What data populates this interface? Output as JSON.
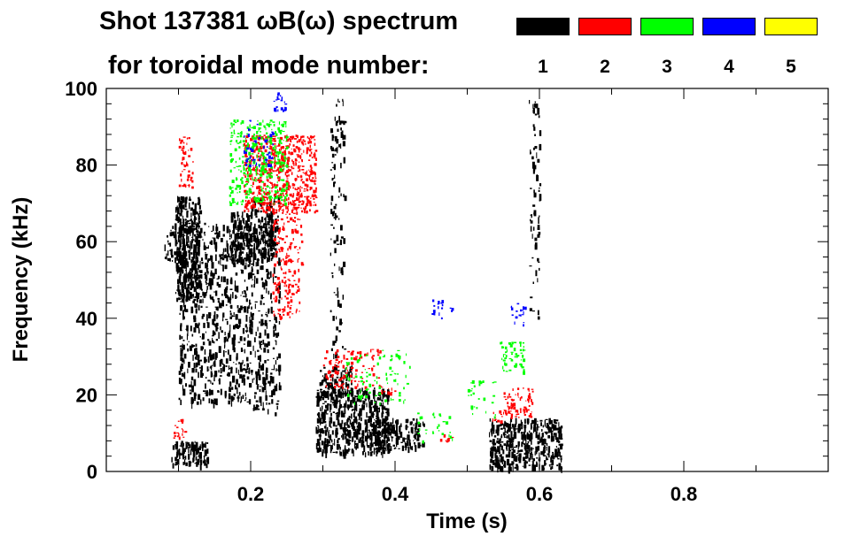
{
  "chart_data": {
    "type": "heatmap",
    "title": "Shot 137381 ωB(ω) spectrum",
    "subtitle": "for toroidal mode number:",
    "xlabel": "Time (s)",
    "ylabel": "Frequency (kHz)",
    "xlim": [
      0.0,
      1.0
    ],
    "ylim": [
      0,
      100
    ],
    "xticks": [
      0.2,
      0.4,
      0.6,
      0.8
    ],
    "xtick_labels": [
      "0.2",
      "0.4",
      "0.6",
      "0.8"
    ],
    "yticks": [
      0,
      20,
      40,
      60,
      80,
      100
    ],
    "ytick_labels": [
      "0",
      "20",
      "40",
      "60",
      "80",
      "100"
    ],
    "legend": [
      {
        "label": "1",
        "color": "#000000"
      },
      {
        "label": "2",
        "color": "#ff0000"
      },
      {
        "label": "3",
        "color": "#00ff00"
      },
      {
        "label": "4",
        "color": "#0000ff"
      },
      {
        "label": "5",
        "color": "#ffff00"
      }
    ],
    "regions": [
      {
        "mode": 1,
        "t": [
          0.095,
          0.13
        ],
        "f": [
          45,
          72
        ],
        "density": 1.0
      },
      {
        "mode": 1,
        "t": [
          0.1,
          0.2
        ],
        "f": [
          18,
          65
        ],
        "density": 0.45
      },
      {
        "mode": 1,
        "t": [
          0.17,
          0.23
        ],
        "f": [
          55,
          68
        ],
        "density": 1.0
      },
      {
        "mode": 1,
        "t": [
          0.2,
          0.24
        ],
        "f": [
          15,
          72
        ],
        "density": 0.4
      },
      {
        "mode": 1,
        "t": [
          0.09,
          0.14
        ],
        "f": [
          2,
          8
        ],
        "density": 1.0
      },
      {
        "mode": 1,
        "t": [
          0.29,
          0.39
        ],
        "f": [
          5,
          22
        ],
        "density": 1.0
      },
      {
        "mode": 1,
        "t": [
          0.37,
          0.44
        ],
        "f": [
          6,
          14
        ],
        "density": 0.9
      },
      {
        "mode": 1,
        "t": [
          0.295,
          0.34
        ],
        "f": [
          20,
          28
        ],
        "density": 0.7
      },
      {
        "mode": 1,
        "t": [
          0.53,
          0.63
        ],
        "f": [
          1,
          14
        ],
        "density": 1.0
      },
      {
        "mode": 1,
        "t": [
          0.08,
          0.11
        ],
        "f": [
          55,
          65
        ],
        "density": 0.5
      },
      {
        "mode": 1,
        "t": [
          0.31,
          0.33
        ],
        "f": [
          30,
          98
        ],
        "density": 0.25
      },
      {
        "mode": 1,
        "t": [
          0.585,
          0.6
        ],
        "f": [
          40,
          98
        ],
        "density": 0.25
      },
      {
        "mode": 2,
        "t": [
          0.19,
          0.29
        ],
        "f": [
          68,
          88
        ],
        "density": 1.0
      },
      {
        "mode": 2,
        "t": [
          0.23,
          0.27
        ],
        "f": [
          40,
          70
        ],
        "density": 0.5
      },
      {
        "mode": 2,
        "t": [
          0.1,
          0.12
        ],
        "f": [
          74,
          88
        ],
        "density": 0.6
      },
      {
        "mode": 2,
        "t": [
          0.3,
          0.38
        ],
        "f": [
          22,
          32
        ],
        "density": 0.45
      },
      {
        "mode": 2,
        "t": [
          0.38,
          0.4
        ],
        "f": [
          20,
          22
        ],
        "density": 0.5
      },
      {
        "mode": 2,
        "t": [
          0.55,
          0.59
        ],
        "f": [
          14,
          22
        ],
        "density": 0.7
      },
      {
        "mode": 2,
        "t": [
          0.53,
          0.55
        ],
        "f": [
          13,
          16
        ],
        "density": 0.5
      },
      {
        "mode": 2,
        "t": [
          0.46,
          0.48
        ],
        "f": [
          8,
          10
        ],
        "density": 0.4
      },
      {
        "mode": 2,
        "t": [
          0.09,
          0.11
        ],
        "f": [
          8,
          14
        ],
        "density": 0.4
      },
      {
        "mode": 3,
        "t": [
          0.17,
          0.25
        ],
        "f": [
          70,
          92
        ],
        "density": 0.6
      },
      {
        "mode": 3,
        "t": [
          0.545,
          0.58
        ],
        "f": [
          26,
          34
        ],
        "density": 0.6
      },
      {
        "mode": 3,
        "t": [
          0.33,
          0.42
        ],
        "f": [
          18,
          32
        ],
        "density": 0.2
      },
      {
        "mode": 3,
        "t": [
          0.43,
          0.48
        ],
        "f": [
          8,
          16
        ],
        "density": 0.2
      },
      {
        "mode": 3,
        "t": [
          0.5,
          0.54
        ],
        "f": [
          14,
          24
        ],
        "density": 0.2
      },
      {
        "mode": 4,
        "t": [
          0.23,
          0.25
        ],
        "f": [
          94,
          99
        ],
        "density": 0.6
      },
      {
        "mode": 4,
        "t": [
          0.19,
          0.23
        ],
        "f": [
          80,
          92
        ],
        "density": 0.3
      },
      {
        "mode": 4,
        "t": [
          0.56,
          0.58
        ],
        "f": [
          38,
          44
        ],
        "density": 0.4
      },
      {
        "mode": 4,
        "t": [
          0.45,
          0.48
        ],
        "f": [
          40,
          45
        ],
        "density": 0.3
      }
    ]
  }
}
